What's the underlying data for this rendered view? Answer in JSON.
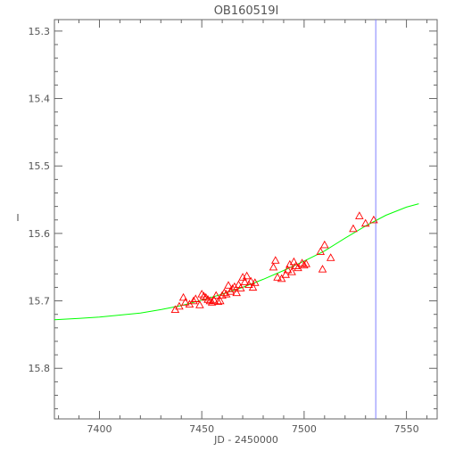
{
  "chart_data": {
    "type": "scatter",
    "title": "OB160519I",
    "xlabel": "JD - 2450000",
    "ylabel": "I",
    "xlim": [
      7378,
      7565
    ],
    "ylim": [
      15.875,
      15.283
    ],
    "y_inverted": true,
    "grid": false,
    "x_ticks": [
      7400,
      7450,
      7500,
      7550
    ],
    "x_tick_labels": [
      "7400",
      "7450",
      "7500",
      "7550"
    ],
    "y_ticks": [
      15.3,
      15.4,
      15.5,
      15.6,
      15.7,
      15.8
    ],
    "y_tick_labels": [
      "15.3",
      "15.4",
      "15.5",
      "15.6",
      "15.7",
      "15.8"
    ],
    "x_minor_step": 10,
    "y_minor_step": 0.02,
    "colors": {
      "points": "#ff0000",
      "model": "#00ff00",
      "vline": "#8080ff",
      "axes": "#666666"
    },
    "vline_x": 7535,
    "model_curve": {
      "x": [
        7378,
        7390,
        7400,
        7410,
        7420,
        7430,
        7440,
        7450,
        7460,
        7470,
        7480,
        7490,
        7500,
        7510,
        7520,
        7530,
        7540,
        7550,
        7556
      ],
      "y": [
        15.728,
        15.726,
        15.724,
        15.721,
        15.718,
        15.713,
        15.707,
        15.699,
        15.69,
        15.68,
        15.668,
        15.655,
        15.641,
        15.626,
        15.607,
        15.589,
        15.573,
        15.561,
        15.556
      ]
    },
    "points": {
      "x": [
        7437,
        7439,
        7441,
        7442,
        7444,
        7446,
        7447,
        7449,
        7450,
        7451,
        7452,
        7453,
        7454,
        7455,
        7456,
        7457,
        7458,
        7459,
        7460,
        7461,
        7462,
        7463,
        7464,
        7465,
        7466,
        7467,
        7468,
        7469,
        7470,
        7471,
        7472,
        7473,
        7474,
        7475,
        7476,
        7485,
        7486,
        7487,
        7489,
        7491,
        7492,
        7493,
        7494,
        7495,
        7496,
        7497,
        7499,
        7500,
        7501,
        7508,
        7509,
        7510,
        7513,
        7524,
        7527,
        7530,
        7534
      ],
      "y": [
        15.713,
        15.708,
        15.695,
        15.702,
        15.705,
        15.7,
        15.697,
        15.706,
        15.69,
        15.693,
        15.695,
        15.698,
        15.7,
        15.702,
        15.699,
        15.692,
        15.701,
        15.7,
        15.692,
        15.688,
        15.69,
        15.677,
        15.686,
        15.682,
        15.679,
        15.688,
        15.676,
        15.681,
        15.665,
        15.672,
        15.663,
        15.676,
        15.671,
        15.68,
        15.673,
        15.65,
        15.64,
        15.665,
        15.667,
        15.661,
        15.654,
        15.646,
        15.657,
        15.642,
        15.648,
        15.651,
        15.644,
        15.647,
        15.645,
        15.627,
        15.653,
        15.617,
        15.636,
        15.593,
        15.574,
        15.585,
        15.58
      ]
    }
  }
}
